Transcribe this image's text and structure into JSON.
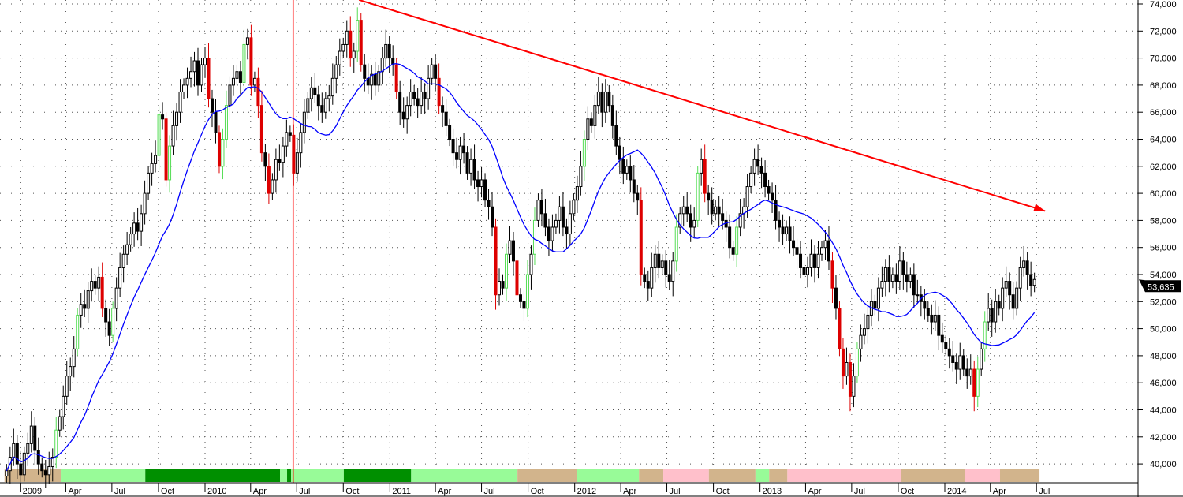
{
  "chart_data": {
    "type": "candlestick",
    "interval": "weekly",
    "start_date": "2008-12-05",
    "close": [
      39500,
      40500,
      41500,
      40000,
      39200,
      40800,
      41500,
      42800,
      41000,
      40000,
      39500,
      39200,
      39800,
      40500,
      42500,
      43500,
      45000,
      46500,
      47200,
      48500,
      51000,
      51800,
      51500,
      52800,
      53500,
      53000,
      53800,
      51500,
      50500,
      49500,
      51500,
      53000,
      54500,
      55500,
      56200,
      57000,
      57800,
      57200,
      58500,
      60000,
      61500,
      62200,
      62800,
      65800,
      65500,
      61000,
      63500,
      65000,
      66000,
      67500,
      68000,
      68500,
      69000,
      69800,
      68000,
      69500,
      70000,
      67000,
      66000,
      64500,
      62000,
      64000,
      66500,
      68000,
      68500,
      69000,
      68200,
      71000,
      71500,
      68000,
      68500,
      66500,
      63000,
      62000,
      60000,
      61000,
      62500,
      62300,
      63500,
      64500,
      64300,
      61500,
      63000,
      64500,
      66000,
      67000,
      67800,
      67300,
      66500,
      66000,
      67000,
      67200,
      68500,
      69500,
      70500,
      71000,
      72000,
      70000,
      70500,
      72800,
      69500,
      68500,
      68000,
      68800,
      68000,
      69000,
      70000,
      71000,
      70000,
      69500,
      67500,
      66000,
      65500,
      66500,
      67500,
      67000,
      66500,
      67500,
      67000,
      68500,
      69500,
      68500,
      66500,
      66000,
      65000,
      64000,
      63000,
      62500,
      63500,
      63000,
      61500,
      62500,
      61000,
      60500,
      61000,
      59500,
      59000,
      57500,
      52500,
      53500,
      53000,
      55500,
      56500,
      55000,
      52500,
      52000,
      51500,
      54000,
      55500,
      58000,
      59500,
      58500,
      57500,
      56500,
      57500,
      58000,
      59000,
      57500,
      57000,
      58500,
      59500,
      60500,
      62000,
      64000,
      65500,
      65000,
      66500,
      67500,
      66000,
      67500,
      66500,
      65000,
      63500,
      62500,
      61500,
      62000,
      61000,
      60000,
      59500,
      54000,
      53500,
      53000,
      54500,
      55500,
      54500,
      55000,
      54000,
      53500,
      55000,
      57500,
      58500,
      59000,
      58500,
      57500,
      58000,
      61500,
      62500,
      60000,
      59500,
      58500,
      59000,
      58500,
      58000,
      57500,
      56000,
      55500,
      57500,
      58500,
      59000,
      60500,
      61500,
      62500,
      62000,
      61500,
      60500,
      60000,
      59500,
      58000,
      57500,
      57000,
      57500,
      56500,
      56000,
      55500,
      54500,
      54000,
      54500,
      55500,
      54500,
      55500,
      56000,
      56500,
      55000,
      53000,
      51500,
      48500,
      46500,
      47500,
      45000,
      46500,
      48500,
      49500,
      50000,
      51000,
      52000,
      51500,
      53000,
      53500,
      54500,
      53500,
      54000,
      53500,
      55000,
      54000,
      53500,
      54000,
      52500,
      52500,
      52000,
      51500,
      51000,
      50500,
      51000,
      49500,
      49000,
      48500,
      48000,
      47500,
      47000,
      48000,
      47000,
      46500,
      47000,
      45000,
      47000,
      48500,
      50500,
      51500,
      50500,
      52000,
      51500,
      53000,
      53500,
      52500,
      51500,
      53000,
      54500,
      55000,
      54000,
      53200,
      53635
    ],
    "last_price_label": "53,635",
    "ylim": [
      38700,
      74300
    ],
    "y_ticks": [
      {
        "value": 74000,
        "label": "74,000"
      },
      {
        "value": 72000,
        "label": "72,000"
      },
      {
        "value": 70000,
        "label": "70,000"
      },
      {
        "value": 68000,
        "label": "68,000"
      },
      {
        "value": 66000,
        "label": "66,000"
      },
      {
        "value": 64000,
        "label": "64,000"
      },
      {
        "value": 62000,
        "label": "62,000"
      },
      {
        "value": 60000,
        "label": "60,000"
      },
      {
        "value": 58000,
        "label": "58,000"
      },
      {
        "value": 56000,
        "label": "56,000"
      },
      {
        "value": 54000,
        "label": "54,000"
      },
      {
        "value": 52000,
        "label": "52,000"
      },
      {
        "value": 50000,
        "label": "50,000"
      },
      {
        "value": 48000,
        "label": "48,000"
      },
      {
        "value": 46000,
        "label": "46,000"
      },
      {
        "value": 44000,
        "label": "44,000"
      },
      {
        "value": 42000,
        "label": "42,000"
      },
      {
        "value": 40000,
        "label": "40,000"
      }
    ],
    "x_ticks": [
      {
        "date": "2009-01-01",
        "label": "2009"
      },
      {
        "date": "2009-04-01",
        "label": "Apr"
      },
      {
        "date": "2009-07-01",
        "label": "Jul"
      },
      {
        "date": "2009-10-01",
        "label": "Oct"
      },
      {
        "date": "2010-01-01",
        "label": "2010"
      },
      {
        "date": "2010-04-01",
        "label": "Apr"
      },
      {
        "date": "2010-07-01",
        "label": "Jul"
      },
      {
        "date": "2010-10-01",
        "label": "Oct"
      },
      {
        "date": "2011-01-01",
        "label": "2011"
      },
      {
        "date": "2011-04-01",
        "label": "Apr"
      },
      {
        "date": "2011-07-01",
        "label": "Jul"
      },
      {
        "date": "2011-10-01",
        "label": "Oct"
      },
      {
        "date": "2012-01-01",
        "label": "2012"
      },
      {
        "date": "2012-04-01",
        "label": "Apr"
      },
      {
        "date": "2012-07-01",
        "label": "Jul"
      },
      {
        "date": "2012-10-01",
        "label": "Oct"
      },
      {
        "date": "2013-01-01",
        "label": "2013"
      },
      {
        "date": "2013-04-01",
        "label": "Apr"
      },
      {
        "date": "2013-07-01",
        "label": "Jul"
      },
      {
        "date": "2013-10-01",
        "label": "Oct"
      },
      {
        "date": "2014-01-01",
        "label": "2014"
      },
      {
        "date": "2014-04-01",
        "label": "Apr"
      },
      {
        "date": "2014-07-01",
        "label": "Jul"
      }
    ],
    "grid": true,
    "moving_average": {
      "period": 20,
      "color": "#0000ff"
    },
    "trendline": {
      "start": {
        "date": "2010-11-01",
        "value": 74300
      },
      "end": {
        "date": "2014-07-18",
        "value": 58700
      },
      "color": "#ff0000",
      "arrow": true
    },
    "vertical_marker": {
      "date": "2010-06-24",
      "color": "#ff0000"
    },
    "regime_bands": [
      {
        "start": "2008-12-01",
        "end": "2009-03-22",
        "color": "#d2b48c"
      },
      {
        "start": "2009-03-22",
        "end": "2009-09-05",
        "color": "#98fb98"
      },
      {
        "start": "2009-09-05",
        "end": "2010-05-29",
        "color": "#008f00"
      },
      {
        "start": "2010-05-29",
        "end": "2010-06-12",
        "color": "#98fb98"
      },
      {
        "start": "2010-06-12",
        "end": "2010-06-20",
        "color": "#008f00"
      },
      {
        "start": "2010-06-20",
        "end": "2010-10-02",
        "color": "#98fb98"
      },
      {
        "start": "2010-10-02",
        "end": "2011-02-12",
        "color": "#008f00"
      },
      {
        "start": "2011-02-12",
        "end": "2011-09-10",
        "color": "#98fb98"
      },
      {
        "start": "2011-09-10",
        "end": "2012-01-06",
        "color": "#d2b48c"
      },
      {
        "start": "2012-01-06",
        "end": "2012-05-07",
        "color": "#98fb98"
      },
      {
        "start": "2012-05-07",
        "end": "2012-06-24",
        "color": "#d2b48c"
      },
      {
        "start": "2012-06-24",
        "end": "2012-09-22",
        "color": "#ffc0cb"
      },
      {
        "start": "2012-09-22",
        "end": "2012-12-23",
        "color": "#d2b48c"
      },
      {
        "start": "2012-12-23",
        "end": "2013-01-19",
        "color": "#98fb98"
      },
      {
        "start": "2013-01-19",
        "end": "2013-02-24",
        "color": "#d2b48c"
      },
      {
        "start": "2013-02-24",
        "end": "2013-10-06",
        "color": "#ffc0cb"
      },
      {
        "start": "2013-10-06",
        "end": "2014-02-09",
        "color": "#d2b48c"
      },
      {
        "start": "2014-02-09",
        "end": "2014-04-20",
        "color": "#ffc0cb"
      },
      {
        "start": "2014-04-20",
        "end": "2014-07-07",
        "color": "#d2b48c"
      }
    ],
    "colors": {
      "up": "#000000",
      "down": "#000000",
      "strong_up": "#55dd55",
      "strong_down": "#dd0000",
      "price_tag": "#000000"
    }
  }
}
